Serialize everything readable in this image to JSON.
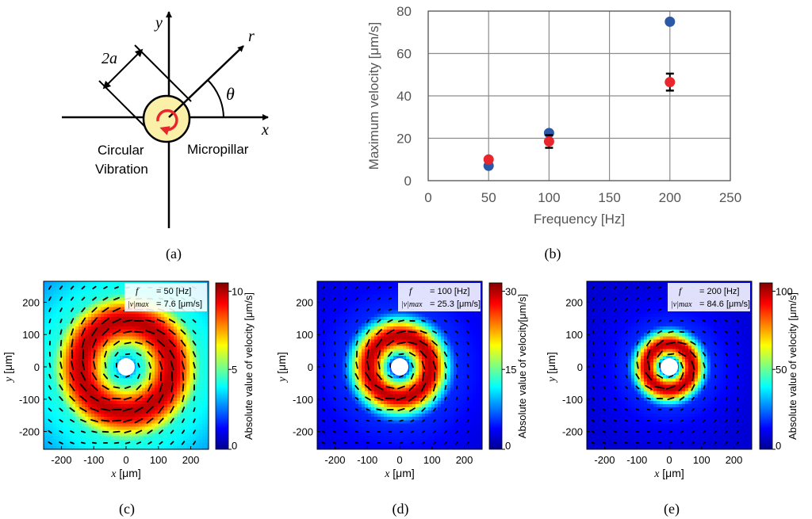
{
  "panel_a": {
    "caption": "(a)",
    "axis_x": "x",
    "axis_y": "y",
    "axis_r": "r",
    "angle": "θ",
    "radius": "2a",
    "vibration_label_1": "Circular",
    "vibration_label_2": "Vibration",
    "pillar_label": "Micropillar",
    "pillar_fill": "#fbf0a8",
    "arrow_color": "#e8262b"
  },
  "panel_b": {
    "caption": "(b)",
    "colors": {
      "series_blue": "#2c58a8",
      "series_red": "#e8262b"
    }
  },
  "chart_data": [
    {
      "type": "scatter",
      "xlabel": "Frequency [Hz]",
      "ylabel": "Maximum velocity [μm/s]",
      "xlim": [
        0,
        250
      ],
      "ylim": [
        0,
        80
      ],
      "xticks": [
        "0",
        "50",
        "100",
        "150",
        "200",
        "250"
      ],
      "yticks": [
        "0",
        "20",
        "40",
        "60",
        "80"
      ],
      "grid": true,
      "series": [
        {
          "color": "#2c58a8",
          "x": [
            50,
            100,
            200
          ],
          "y": [
            7,
            22.5,
            75
          ]
        },
        {
          "color": "#e8262b",
          "x": [
            50,
            100,
            200
          ],
          "y": [
            10,
            18.5,
            46.5
          ],
          "err": [
            0.8,
            3,
            4
          ]
        }
      ]
    },
    {
      "type": "heatmap",
      "caption": "(c)",
      "f_label": "f",
      "f_value": "= 50 [Hz]",
      "vmax_label": "|v|max",
      "vmax_value": "= 7.6 [μm/s]",
      "colorbar_label": "Absolute value of velocity [μm/s]",
      "colorbar_ticks": [
        "10",
        "5",
        "0"
      ],
      "xlabel_var": "x",
      "xlabel_unit": " [μm]",
      "ylabel_var": "y",
      "ylabel_unit": " [μm]",
      "xticks": [
        "-200",
        "-100",
        "0",
        "100",
        "200"
      ],
      "yticks": [
        "200",
        "100",
        "0",
        "-100",
        "-200"
      ],
      "peak_radius_um": 140,
      "ring_width_um": 90
    },
    {
      "type": "heatmap",
      "caption": "(d)",
      "f_label": "f",
      "f_value": "= 100 [Hz]",
      "vmax_label": "|v|max",
      "vmax_value": "= 25.3  [μm/s]",
      "colorbar_label": "Absolute value of velocity[μm/s]",
      "colorbar_ticks": [
        "30",
        "15",
        "0"
      ],
      "xlabel_var": "x",
      "xlabel_unit": " [μm]",
      "ylabel_var": "y",
      "ylabel_unit": " [μm]",
      "xticks": [
        "-200",
        "-100",
        "0",
        "100",
        "200"
      ],
      "yticks": [
        "200",
        "100",
        "0",
        "-100",
        "-200"
      ],
      "peak_radius_um": 95,
      "ring_width_um": 55
    },
    {
      "type": "heatmap",
      "caption": "(e)",
      "f_label": "f",
      "f_value": "= 200 [Hz]",
      "vmax_label": "|v|max",
      "vmax_value": "= 84.6  [μm/s]",
      "colorbar_label": "Absolute value of velocity [μm/s]",
      "colorbar_ticks": [
        "100",
        "50",
        "0"
      ],
      "xlabel_var": "x",
      "xlabel_unit": " [μm]",
      "ylabel_var": "y",
      "ylabel_unit": " [μm]",
      "xticks": [
        "-200",
        "-100",
        "0",
        "100",
        "200"
      ],
      "yticks": [
        "200",
        "100",
        "0",
        "-100",
        "-200"
      ],
      "peak_radius_um": 70,
      "ring_width_um": 40
    }
  ]
}
